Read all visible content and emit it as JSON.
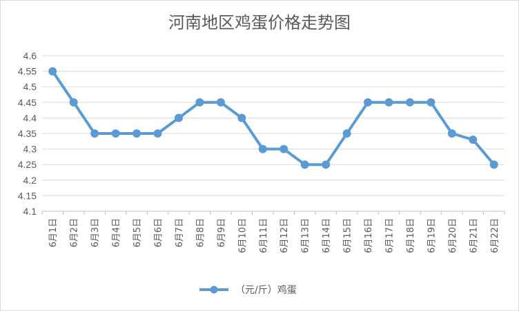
{
  "chart_data": {
    "type": "line",
    "title": "河南地区鸡蛋价格走势图",
    "xlabel": "",
    "ylabel": "",
    "categories": [
      "6月1日",
      "6月2日",
      "6月3日",
      "6月4日",
      "6月5日",
      "6月6日",
      "6月7日",
      "6月8日",
      "6月9日",
      "6月10日",
      "6月11日",
      "6月12日",
      "6月13日",
      "6月14日",
      "6月15日",
      "6月16日",
      "6月17日",
      "6月18日",
      "6月19日",
      "6月20日",
      "6月21日",
      "6月22日"
    ],
    "series": [
      {
        "name": "（元/斤）鸡蛋",
        "values": [
          4.55,
          4.45,
          4.35,
          4.35,
          4.35,
          4.35,
          4.4,
          4.45,
          4.45,
          4.4,
          4.3,
          4.3,
          4.25,
          4.25,
          4.35,
          4.45,
          4.45,
          4.45,
          4.45,
          4.35,
          4.33,
          4.25
        ]
      }
    ],
    "ylim": [
      4.1,
      4.6
    ],
    "yticks": [
      "4.1",
      "4.15",
      "4.2",
      "4.25",
      "4.3",
      "4.35",
      "4.4",
      "4.45",
      "4.5",
      "4.55",
      "4.6"
    ],
    "grid": true,
    "legend": "bottom",
    "colors": {
      "line": "#5b9bd5",
      "grid": "#d9d9d9",
      "axis": "#bfbfbf"
    }
  }
}
